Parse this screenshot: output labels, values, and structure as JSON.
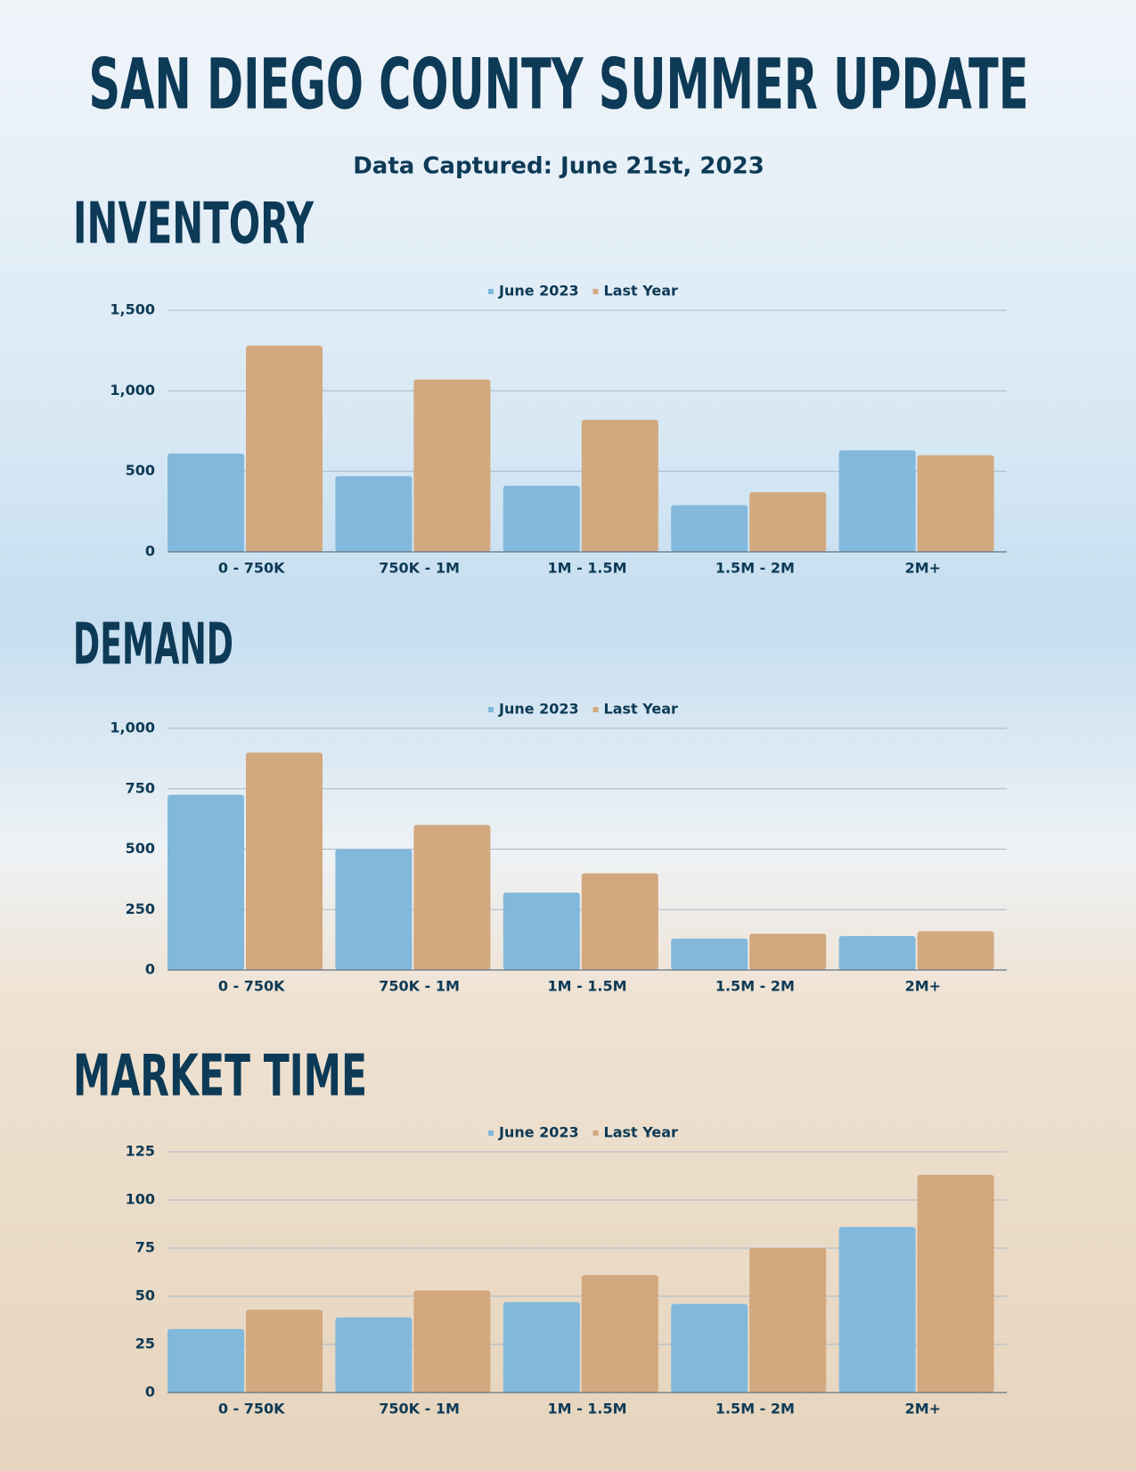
{
  "title": "SAN DIEGO COUNTY SUMMER UPDATE",
  "subtitle": "Data Captured: June 21st, 2023",
  "chart_data": [
    {
      "type": "bar",
      "title": "INVENTORY",
      "categories": [
        "0 - 750K",
        "750K - 1M",
        "1M - 1.5M",
        "1.5M - 2M",
        "2M+"
      ],
      "series": [
        {
          "name": "June 2023",
          "color": "#82b8dc",
          "values": [
            610,
            470,
            410,
            290,
            630
          ]
        },
        {
          "name": "Last Year",
          "color": "#d2a87f",
          "values": [
            1280,
            1070,
            820,
            370,
            600
          ]
        }
      ],
      "ylim": [
        0,
        1500
      ],
      "yticks": [
        0,
        500,
        {
          "value": 1000,
          "label": "1,000"
        },
        {
          "value": 1500,
          "label": "1,500"
        }
      ],
      "grid": true,
      "legend": "top"
    },
    {
      "type": "bar",
      "title": "DEMAND",
      "categories": [
        "0 - 750K",
        "750K - 1M",
        "1M - 1.5M",
        "1.5M - 2M",
        "2M+"
      ],
      "series": [
        {
          "name": "June 2023",
          "color": "#82b8dc",
          "values": [
            725,
            500,
            320,
            130,
            140
          ]
        },
        {
          "name": "Last Year",
          "color": "#d2a87f",
          "values": [
            900,
            600,
            400,
            150,
            160
          ]
        }
      ],
      "ylim": [
        0,
        1000
      ],
      "yticks": [
        0,
        250,
        500,
        750,
        {
          "value": 1000,
          "label": "1,000"
        }
      ],
      "grid": true,
      "legend": "top"
    },
    {
      "type": "bar",
      "title": "MARKET TIME",
      "categories": [
        "0 - 750K",
        "750K - 1M",
        "1M - 1.5M",
        "1.5M - 2M",
        "2M+"
      ],
      "series": [
        {
          "name": "June 2023",
          "color": "#82b8dc",
          "values": [
            33,
            39,
            47,
            46,
            86
          ]
        },
        {
          "name": "Last Year",
          "color": "#d2a87f",
          "values": [
            43,
            53,
            61,
            75,
            113
          ]
        }
      ],
      "ylim": [
        0,
        125
      ],
      "yticks": [
        0,
        25,
        50,
        75,
        100,
        125
      ],
      "grid": true,
      "legend": "top"
    }
  ]
}
